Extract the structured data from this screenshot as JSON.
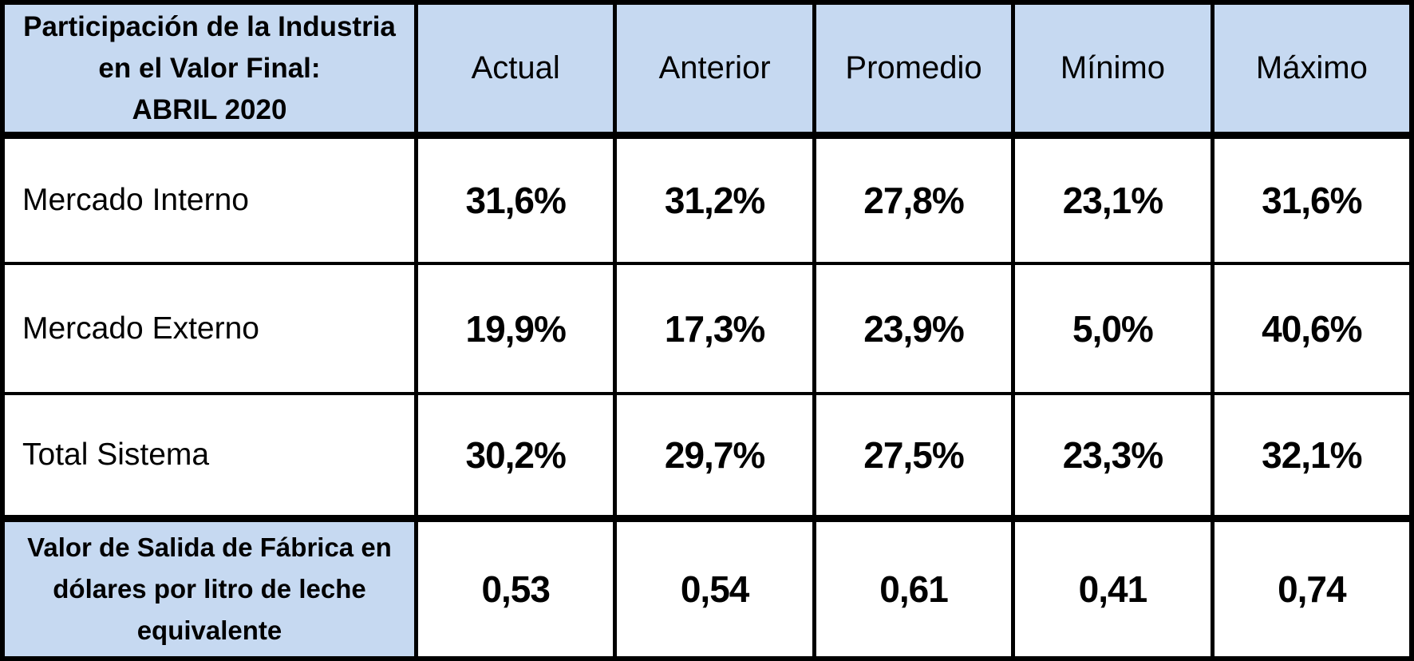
{
  "table": {
    "title_lines": [
      "Participación de la Industria",
      "en el Valor Final:",
      "ABRIL 2020"
    ],
    "columns": [
      "Actual",
      "Anterior",
      "Promedio",
      "Mínimo",
      "Máximo"
    ],
    "rows": [
      {
        "label": "Mercado Interno",
        "values": [
          "31,6%",
          "31,2%",
          "27,8%",
          "23,1%",
          "31,6%"
        ]
      },
      {
        "label": "Mercado Externo",
        "values": [
          "19,9%",
          "17,3%",
          "23,9%",
          "5,0%",
          "40,6%"
        ]
      },
      {
        "label": "Total Sistema",
        "values": [
          "30,2%",
          "29,7%",
          "27,5%",
          "23,3%",
          "32,1%"
        ]
      }
    ],
    "footer": {
      "label_lines": [
        "Valor de Salida de Fábrica en",
        "dólares por litro de leche",
        "equivalente"
      ],
      "values": [
        "0,53",
        "0,54",
        "0,61",
        "0,41",
        "0,74"
      ]
    },
    "colors": {
      "header_fill": "#C6D9F1",
      "border": "#000000",
      "text": "#000000",
      "cell_fill": "#FFFFFF"
    }
  },
  "chart_data": {
    "type": "table",
    "title": "Participación de la Industria en el Valor Final: ABRIL 2020",
    "columns": [
      "Actual",
      "Anterior",
      "Promedio",
      "Mínimo",
      "Máximo"
    ],
    "rows": [
      {
        "label": "Mercado Interno",
        "values_pct": [
          31.6,
          31.2,
          27.8,
          23.1,
          31.6
        ]
      },
      {
        "label": "Mercado Externo",
        "values_pct": [
          19.9,
          17.3,
          23.9,
          5.0,
          40.6
        ]
      },
      {
        "label": "Total Sistema",
        "values_pct": [
          30.2,
          29.7,
          27.5,
          23.3,
          32.1
        ]
      },
      {
        "label": "Valor de Salida de Fábrica en dólares por litro de leche equivalente",
        "values_usd": [
          0.53,
          0.54,
          0.61,
          0.41,
          0.74
        ]
      }
    ]
  }
}
